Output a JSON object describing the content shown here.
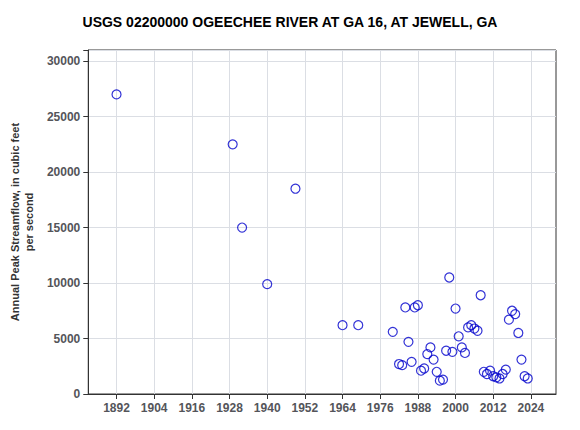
{
  "chart_data": {
    "type": "scatter",
    "title": "USGS 02200000 OGEECHEE RIVER AT GA 16, AT JEWELL, GA",
    "y_label": "Annual Peak Streamflow, in cubic feet\nper second",
    "x": [
      1892,
      1929,
      1932,
      1940,
      1949,
      1964,
      1969,
      1980,
      1982,
      1983,
      1984,
      1985,
      1986,
      1987,
      1988,
      1989,
      1990,
      1991,
      1992,
      1993,
      1994,
      1995,
      1996,
      1997,
      1998,
      1999,
      2000,
      2001,
      2002,
      2003,
      2004,
      2005,
      2006,
      2007,
      2008,
      2009,
      2010,
      2011,
      2012,
      2013,
      2014,
      2015,
      2016,
      2017,
      2018,
      2019,
      2020,
      2021,
      2022,
      2023
    ],
    "values": [
      27000,
      22500,
      15000,
      9900,
      18500,
      6200,
      6200,
      5600,
      2700,
      2600,
      7800,
      4700,
      2900,
      7800,
      8000,
      2100,
      2300,
      3600,
      4200,
      3100,
      2000,
      1200,
      1300,
      3900,
      10500,
      3800,
      7700,
      5200,
      4200,
      3700,
      6000,
      6200,
      5900,
      5700,
      8900,
      2000,
      1800,
      2100,
      1600,
      1500,
      1400,
      1800,
      2200,
      6700,
      7500,
      7200,
      5500,
      3100,
      1600,
      1400
    ],
    "color": "#0000CC",
    "marker": "circle",
    "xlim": [
      1883,
      2032
    ],
    "xticks": [
      1892,
      1904,
      1916,
      1928,
      1940,
      1952,
      1964,
      1976,
      1988,
      2000,
      2012,
      2024
    ],
    "ylim": [
      0,
      31000
    ],
    "yticks": [
      0,
      5000,
      10000,
      15000,
      20000,
      25000,
      30000
    ],
    "grid": true
  }
}
